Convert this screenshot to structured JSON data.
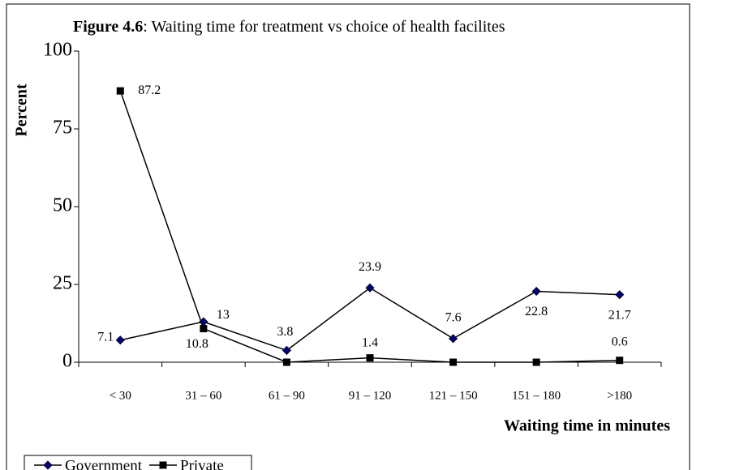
{
  "chart_data": {
    "type": "line",
    "title_label": "Figure 4.6",
    "title": ": Waiting time for treatment vs choice of health facilites",
    "x_label": "Waiting time in minutes",
    "y_label": "Percent",
    "categories": [
      "< 30",
      "31 – 60",
      "61 – 90",
      "91 – 120",
      "121 – 150",
      "151 – 180",
      ">180"
    ],
    "series": [
      {
        "name": "Government",
        "color": "#000080",
        "marker": "diamond",
        "values": [
          7.1,
          13,
          3.8,
          23.9,
          7.6,
          22.8,
          21.7
        ]
      },
      {
        "name": "Private",
        "color": "#000000",
        "marker": "square",
        "values": [
          87.2,
          10.8,
          0,
          1.4,
          0,
          0,
          0.6
        ],
        "value_labels": [
          "87.2",
          "10.8",
          null,
          "1.4",
          null,
          null,
          "0.6"
        ]
      }
    ],
    "ylim": [
      0,
      100
    ],
    "yticks": [
      0,
      25,
      50,
      75,
      100
    ],
    "legend": "bottom-left"
  }
}
